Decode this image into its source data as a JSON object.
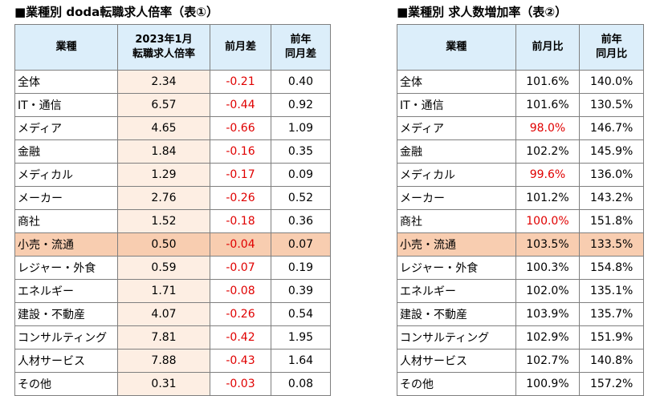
{
  "table1": {
    "title": "■業種別 doda転職求人倍率（表①）",
    "headers": [
      "業種",
      "2023年1月\n転職求人倍率",
      "前月差",
      "前年\n同月差"
    ],
    "highlight_row": 7,
    "rows": [
      [
        "全体",
        "2.34",
        "-0.21",
        "0.40"
      ],
      [
        "IT・通信",
        "6.57",
        "-0.44",
        "0.92"
      ],
      [
        "メディア",
        "4.65",
        "-0.66",
        "1.09"
      ],
      [
        "金融",
        "1.84",
        "-0.16",
        "0.35"
      ],
      [
        "メディカル",
        "1.29",
        "-0.17",
        "0.09"
      ],
      [
        "メーカー",
        "2.76",
        "-0.26",
        "0.52"
      ],
      [
        "商社",
        "1.52",
        "-0.18",
        "0.36"
      ],
      [
        "小売・流通",
        "0.50",
        "-0.04",
        "0.07"
      ],
      [
        "レジャー・外食",
        "0.59",
        "-0.07",
        "0.19"
      ],
      [
        "エネルギー",
        "1.71",
        "-0.08",
        "0.39"
      ],
      [
        "建設・不動産",
        "4.07",
        "-0.26",
        "0.54"
      ],
      [
        "コンサルティング",
        "7.81",
        "-0.42",
        "1.95"
      ],
      [
        "人材サービス",
        "7.88",
        "-0.43",
        "1.64"
      ],
      [
        "その他",
        "0.31",
        "-0.03",
        "0.08"
      ]
    ]
  },
  "table2": {
    "title": "■業種別 求人数増加率（表②）",
    "headers": [
      "業種",
      "前月比",
      "前年\n同月比"
    ],
    "highlight_row": 7,
    "rows": [
      [
        "全体",
        "101.6%",
        "140.0%"
      ],
      [
        "IT・通信",
        "101.6%",
        "130.5%"
      ],
      [
        "メディア",
        "98.0%",
        "146.7%"
      ],
      [
        "金融",
        "102.2%",
        "145.9%"
      ],
      [
        "メディカル",
        "99.6%",
        "136.0%"
      ],
      [
        "メーカー",
        "101.2%",
        "143.2%"
      ],
      [
        "商社",
        "100.0%",
        "151.8%"
      ],
      [
        "小売・流通",
        "103.5%",
        "133.5%"
      ],
      [
        "レジャー・外食",
        "100.3%",
        "154.8%"
      ],
      [
        "エネルギー",
        "102.0%",
        "135.1%"
      ],
      [
        "建設・不動産",
        "103.9%",
        "135.7%"
      ],
      [
        "コンサルティング",
        "102.9%",
        "151.9%"
      ],
      [
        "人材サービス",
        "102.7%",
        "140.8%"
      ],
      [
        "その他",
        "100.9%",
        "157.2%"
      ]
    ]
  },
  "colors": {
    "header_bg": "#dceefa",
    "ratio_bg": "#fdeee3",
    "highlight_bg": "#f8cdb0",
    "negative": "#e00000",
    "border": "#7f7f7f"
  }
}
